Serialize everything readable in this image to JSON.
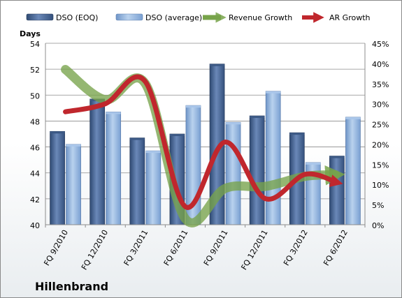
{
  "chart_data": {
    "type": "bar",
    "company": "Hillenbrand",
    "ylabel": "Days",
    "categories": [
      "FQ 9/2010",
      "FQ 12/2010",
      "FQ 3/2011",
      "FQ 6/2011",
      "FQ 9/2011",
      "FQ 12/2011",
      "FQ 3/2012",
      "FQ 6/2012"
    ],
    "left_axis": {
      "min": 40,
      "max": 54,
      "ticks": [
        "40",
        "42",
        "44",
        "46",
        "48",
        "50",
        "52",
        "54"
      ]
    },
    "right_axis": {
      "min": 0,
      "max": 45,
      "ticks": [
        "0%",
        "5%",
        "10%",
        "15%",
        "20%",
        "25%",
        "30%",
        "35%",
        "40%",
        "45%"
      ]
    },
    "bar_series": [
      {
        "name": "DSO (EOQ)",
        "values": [
          47.2,
          49.7,
          46.7,
          47.0,
          52.4,
          48.4,
          47.1,
          45.3
        ],
        "color": "#4d6c9c"
      },
      {
        "name": "DSO (average)",
        "values": [
          46.2,
          48.7,
          45.7,
          49.2,
          47.9,
          50.3,
          44.8,
          48.3
        ],
        "color": "#8db3e2"
      }
    ],
    "line_series": [
      {
        "name": "Revenue Growth",
        "values": [
          38.5,
          31.0,
          35.0,
          1.5,
          9.0,
          9.5,
          12.0,
          12.5
        ],
        "color": "#77a34a"
      },
      {
        "name": "AR Growth",
        "values": [
          28.0,
          30.0,
          35.5,
          4.5,
          20.5,
          6.5,
          12.5,
          10.0
        ],
        "color": "#c0272d"
      }
    ],
    "grid": true,
    "legend_position": "top"
  }
}
